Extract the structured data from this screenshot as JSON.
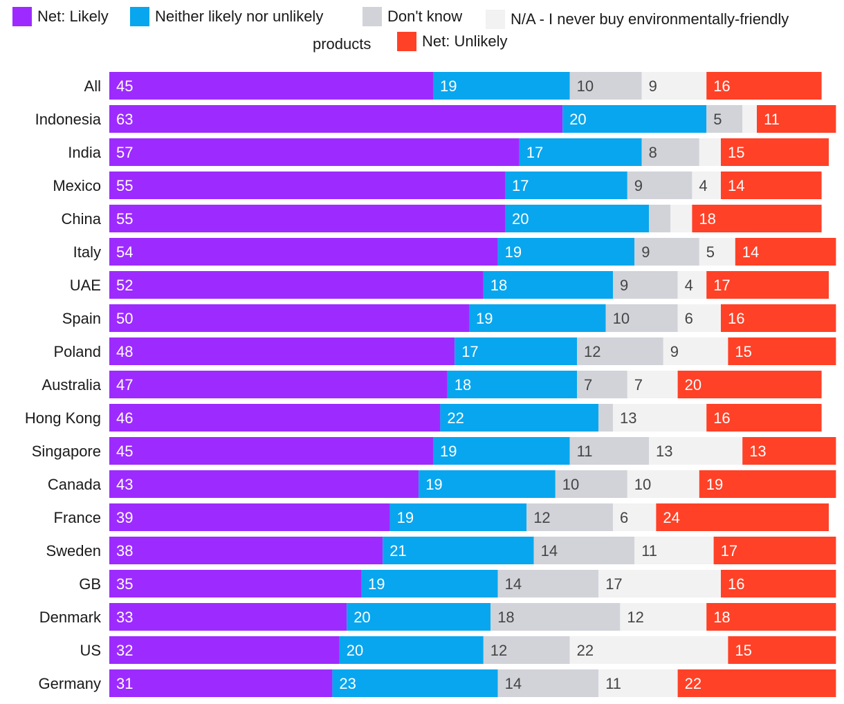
{
  "chart_data": {
    "type": "bar",
    "orientation": "horizontal",
    "stacked": true,
    "title": "",
    "xlabel": "",
    "ylabel": "",
    "legend_position": "top",
    "grid": false,
    "categories": [
      "All",
      "Indonesia",
      "India",
      "Mexico",
      "China",
      "Italy",
      "UAE",
      "Spain",
      "Poland",
      "Australia",
      "Hong Kong",
      "Singapore",
      "Canada",
      "France",
      "Sweden",
      "GB",
      "Denmark",
      "US",
      "Germany"
    ],
    "series": [
      {
        "name": "Net: Likely",
        "color": "#9d2bff",
        "label_color": "#ffffff",
        "values": [
          45,
          63,
          57,
          55,
          55,
          54,
          52,
          50,
          48,
          47,
          46,
          45,
          43,
          39,
          38,
          35,
          33,
          32,
          31
        ]
      },
      {
        "name": "Neither likely nor unlikely",
        "color": "#08a6ee",
        "label_color": "#ffffff",
        "values": [
          19,
          20,
          17,
          17,
          20,
          19,
          18,
          19,
          17,
          18,
          22,
          19,
          19,
          19,
          21,
          19,
          20,
          20,
          23
        ]
      },
      {
        "name": "Don't know",
        "color": "#d1d3d9",
        "label_color": "#444444",
        "values": [
          10,
          5,
          8,
          9,
          3,
          9,
          9,
          10,
          12,
          7,
          2,
          11,
          10,
          12,
          14,
          14,
          18,
          12,
          14
        ],
        "hidden_labels": [
          4,
          10
        ]
      },
      {
        "name": "N/A - I never buy environmentally-friendly products",
        "color": "#f2f2f2",
        "label_color": "#444444",
        "values": [
          9,
          2,
          3,
          4,
          3,
          5,
          4,
          6,
          9,
          7,
          13,
          13,
          10,
          6,
          11,
          17,
          12,
          22,
          11
        ],
        "hidden_labels": [
          1,
          2,
          4
        ]
      },
      {
        "name": "Net: Unlikely",
        "color": "#ff4127",
        "label_color": "#ffffff",
        "values": [
          16,
          11,
          15,
          14,
          18,
          14,
          17,
          16,
          15,
          20,
          16,
          13,
          19,
          24,
          17,
          16,
          18,
          15,
          22
        ]
      }
    ]
  }
}
